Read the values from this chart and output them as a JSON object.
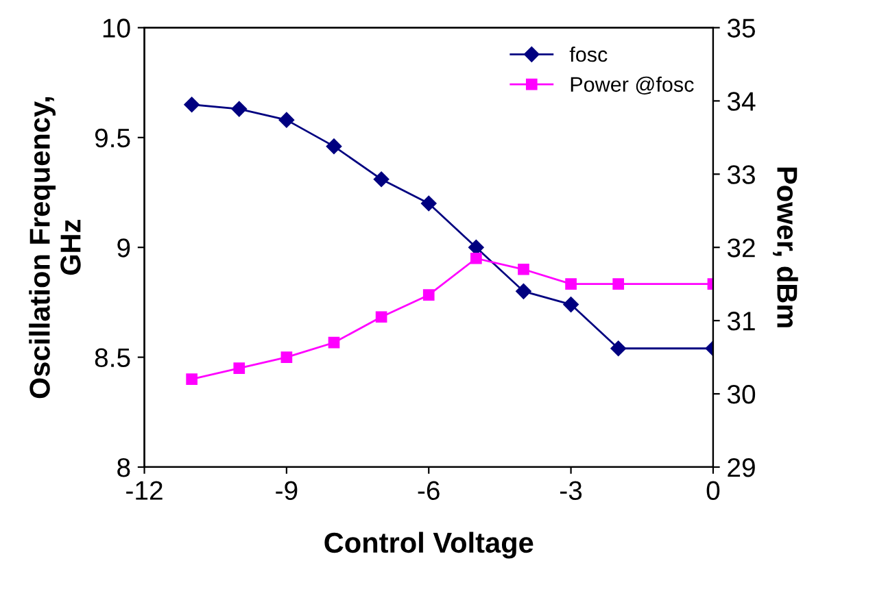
{
  "chart_data": {
    "type": "line",
    "xlabel": "Control Voltage",
    "ylabel": "Oscillation Frequency,\nGHz",
    "y2label": "Power, dBm",
    "xlim": [
      -12,
      0
    ],
    "xticks": [
      -12,
      -9,
      -6,
      -3,
      0
    ],
    "ylim": [
      8,
      10
    ],
    "yticks": [
      8,
      8.5,
      9,
      9.5,
      10
    ],
    "y2lim": [
      29,
      35
    ],
    "y2ticks": [
      29,
      30,
      31,
      32,
      33,
      34,
      35
    ],
    "grid": false,
    "legend": "top right",
    "series": [
      {
        "name": "fosc",
        "color": "#000080",
        "marker": "diamond",
        "x": [
          -11,
          -10,
          -9,
          -8,
          -7,
          -6,
          -5,
          -4,
          -3,
          -2,
          0
        ],
        "values": [
          9.65,
          9.63,
          9.58,
          9.46,
          9.31,
          9.2,
          9.0,
          8.8,
          8.74,
          8.54,
          8.54
        ]
      },
      {
        "name": "Power @fosc",
        "color": "#ff00ff",
        "marker": "square",
        "axis": "y2",
        "x": [
          -11,
          -10,
          -9,
          -8,
          -7,
          -6,
          -5,
          -4,
          -3,
          -2,
          0
        ],
        "values": [
          30.2,
          30.35,
          30.5,
          30.7,
          31.05,
          31.35,
          31.85,
          31.7,
          31.5,
          31.5,
          31.5
        ]
      }
    ]
  }
}
